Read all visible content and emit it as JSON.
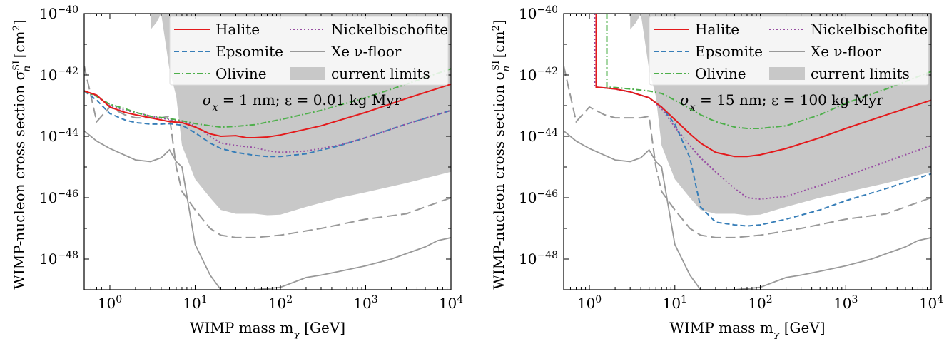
{
  "figure": {
    "ylabel_main": "WIMP-nucleon cross section σ",
    "ylabel_sup": "SI",
    "ylabel_sub": "n",
    "ylabel_unit": " [cm",
    "ylabel_unit_sup": "2",
    "ylabel_close": "]",
    "xlabel_main": "WIMP mass m",
    "xlabel_sub": "χ",
    "xlabel_unit": " [GeV]"
  },
  "chart_data": [
    {
      "type": "line",
      "x_scale": "log",
      "y_scale": "log",
      "xlim": [
        0.5,
        10000
      ],
      "ylim": [
        1e-49,
        1e-40
      ],
      "x_ticks": [
        {
          "label": "10",
          "exp": "0",
          "v": 1
        },
        {
          "label": "10",
          "exp": "1",
          "v": 10
        },
        {
          "label": "10",
          "exp": "2",
          "v": 100
        },
        {
          "label": "10",
          "exp": "3",
          "v": 1000
        },
        {
          "label": "10",
          "exp": "4",
          "v": 10000
        }
      ],
      "y_ticks": [
        {
          "label": "10",
          "exp": "−48",
          "v": 1e-48
        },
        {
          "label": "10",
          "exp": "−46",
          "v": 1e-46
        },
        {
          "label": "10",
          "exp": "−44",
          "v": 1e-44
        },
        {
          "label": "10",
          "exp": "−42",
          "v": 1e-42
        },
        {
          "label": "10",
          "exp": "−40",
          "v": 1e-40
        }
      ],
      "annotation": "σx = 1 nm; ε = 0.01 kg Myr",
      "annotation_parts": [
        "σ",
        "x",
        " = 1 nm; ε = 0.01 kg Myr"
      ],
      "legend_position": "top-right",
      "series": [
        {
          "name": "Halite",
          "color": "#e41a1c",
          "dash": "",
          "x": [
            0.5,
            0.7,
            1,
            1.5,
            2,
            3,
            4,
            5,
            7,
            10,
            15,
            20,
            30,
            40,
            50,
            70,
            100,
            300,
            1000,
            3000,
            10000
          ],
          "y": [
            3e-43,
            2.2e-43,
            9e-44,
            6e-44,
            5e-44,
            4e-44,
            3.4e-44,
            3e-44,
            2.8e-44,
            2e-44,
            1.2e-44,
            1e-44,
            1.05e-44,
            9e-45,
            9e-45,
            9.5e-45,
            1.1e-44,
            2.2e-44,
            6e-44,
            1.7e-43,
            5e-43
          ]
        },
        {
          "name": "Epsomite",
          "color": "#377eb8",
          "dash": "7,4",
          "x": [
            0.5,
            0.7,
            1,
            1.5,
            2,
            3,
            4,
            5,
            7,
            10,
            15,
            20,
            30,
            50,
            70,
            100,
            200,
            500,
            1000,
            3000,
            10000
          ],
          "y": [
            3e-43,
            1.5e-43,
            5.5e-44,
            3.4e-44,
            2.8e-44,
            2.5e-44,
            2.5e-44,
            2.6e-44,
            2.3e-44,
            1.3e-44,
            6e-45,
            4e-45,
            3e-45,
            2.4e-45,
            2.2e-45,
            2.2e-45,
            2.7e-45,
            5e-45,
            9e-45,
            2.5e-44,
            7e-44
          ]
        },
        {
          "name": "Olivine",
          "color": "#4daf4a",
          "dash": "8,3,2,3",
          "x": [
            0.5,
            0.7,
            1,
            1.5,
            2,
            3,
            5,
            7,
            10,
            15,
            20,
            30,
            50,
            100,
            300,
            1000,
            3000,
            10000
          ],
          "y": [
            3e-43,
            2e-43,
            1.1e-43,
            8e-44,
            6e-44,
            4.5e-44,
            3.8e-44,
            3.2e-44,
            2.6e-44,
            2.2e-44,
            2e-44,
            2.1e-44,
            2.4e-44,
            3.5e-44,
            7e-44,
            1.8e-43,
            5e-43,
            1.6e-42
          ]
        },
        {
          "name": "Nickelbischofite",
          "color": "#984ea3",
          "dash": "2,3",
          "x": [
            0.5,
            0.7,
            1,
            1.5,
            2,
            3,
            5,
            7,
            10,
            15,
            20,
            30,
            50,
            70,
            100,
            200,
            500,
            1000,
            3000,
            10000
          ],
          "y": [
            3e-43,
            2e-43,
            1e-43,
            7e-44,
            6e-44,
            4.5e-44,
            3.5e-44,
            3.1e-44,
            2.2e-44,
            1e-44,
            6e-45,
            5e-45,
            4.3e-45,
            3.4e-45,
            3e-45,
            3.3e-45,
            5.2e-45,
            9e-45,
            2.5e-44,
            7e-44
          ]
        },
        {
          "name": "Xe ν-floor",
          "color": "#999999",
          "dash": "",
          "x": [
            0.5,
            0.7,
            1,
            2,
            3,
            4,
            5,
            6,
            7,
            10,
            15,
            20,
            30,
            50,
            100,
            200,
            300,
            500,
            1000,
            2000,
            3000,
            5000,
            7000,
            10000
          ],
          "y": [
            1.5e-44,
            7e-45,
            4e-45,
            1.7e-45,
            1.5e-45,
            2e-45,
            3.6e-45,
            1.5e-45,
            1e-45,
            3e-48,
            3e-49,
            1e-49,
            1e-49,
            1e-49,
            1.2e-49,
            2.5e-49,
            3e-49,
            4e-49,
            6e-49,
            1e-48,
            1.5e-48,
            2.5e-48,
            4e-48,
            5e-48
          ]
        }
      ],
      "extra_floor": {
        "color": "#999999",
        "dash": "14,6",
        "x": [
          0.5,
          0.7,
          1,
          1.5,
          2,
          3,
          4,
          5,
          6,
          7,
          10,
          15,
          20,
          30,
          50,
          100,
          300,
          1000,
          3000,
          10000
        ],
        "y": [
          2e-42,
          3e-44,
          9e-44,
          5e-44,
          4e-44,
          4e-44,
          4e-44,
          4.5e-44,
          1e-45,
          1.6e-46,
          4e-47,
          1e-47,
          6e-48,
          5e-48,
          5e-48,
          6e-48,
          1e-47,
          2e-47,
          3e-47,
          1e-46
        ]
      },
      "limits_region": {
        "x": [
          3,
          3.5,
          4,
          5,
          6,
          7,
          10,
          15,
          20,
          30,
          50,
          70,
          100,
          200,
          500,
          1000,
          3000,
          10000
        ],
        "upper": [
          1e-40,
          1e-40,
          1e-40,
          1e-40,
          1e-40,
          1e-40,
          1e-40,
          1e-40,
          1e-40,
          1e-40,
          1e-40,
          1e-40,
          1e-40,
          1e-40,
          1e-40,
          1e-40,
          1e-40,
          1e-40
        ],
        "lower": [
          3e-41,
          5e-41,
          1e-40,
          1.5e-42,
          2e-43,
          5e-45,
          4e-46,
          1e-46,
          4e-47,
          3e-47,
          3e-47,
          2.7e-47,
          2.8e-47,
          5e-47,
          1e-46,
          1.5e-46,
          3e-46,
          7e-46
        ]
      }
    },
    {
      "type": "line",
      "x_scale": "log",
      "y_scale": "log",
      "xlim": [
        0.5,
        10000
      ],
      "ylim": [
        1e-49,
        1e-40
      ],
      "x_ticks": [
        {
          "label": "10",
          "exp": "0",
          "v": 1
        },
        {
          "label": "10",
          "exp": "1",
          "v": 10
        },
        {
          "label": "10",
          "exp": "2",
          "v": 100
        },
        {
          "label": "10",
          "exp": "3",
          "v": 1000
        },
        {
          "label": "10",
          "exp": "4",
          "v": 10000
        }
      ],
      "y_ticks": [
        {
          "label": "10",
          "exp": "−48",
          "v": 1e-48
        },
        {
          "label": "10",
          "exp": "−46",
          "v": 1e-46
        },
        {
          "label": "10",
          "exp": "−44",
          "v": 1e-44
        },
        {
          "label": "10",
          "exp": "−42",
          "v": 1e-42
        },
        {
          "label": "10",
          "exp": "−40",
          "v": 1e-40
        }
      ],
      "annotation": "σx = 15 nm; ε = 100 kg Myr",
      "annotation_parts": [
        "σ",
        "x",
        " = 15 nm; ε = 100 kg Myr"
      ],
      "legend_position": "top-right",
      "series": [
        {
          "name": "Halite",
          "color": "#e41a1c",
          "dash": "",
          "x": [
            1.2,
            1.2,
            1.5,
            2,
            3,
            5,
            7,
            10,
            15,
            20,
            30,
            50,
            70,
            100,
            200,
            500,
            1000,
            3000,
            10000
          ],
          "y": [
            1e-40,
            4e-43,
            3.8e-43,
            3.5e-43,
            2.8e-43,
            1.8e-43,
            9e-44,
            3.5e-44,
            1.2e-44,
            6e-45,
            3e-45,
            2.2e-45,
            2.2e-45,
            2.5e-45,
            4e-45,
            9e-45,
            1.8e-44,
            5e-44,
            1.5e-43
          ]
        },
        {
          "name": "Epsomite",
          "color": "#377eb8",
          "dash": "7,4",
          "x": [
            1.2,
            1.2,
            1.5,
            2,
            3,
            5,
            7,
            10,
            15,
            20,
            30,
            50,
            70,
            100,
            200,
            500,
            1000,
            3000,
            10000
          ],
          "y": [
            1e-40,
            4e-43,
            3.8e-43,
            3.5e-43,
            2.8e-43,
            1.8e-43,
            9e-44,
            2.5e-44,
            2e-45,
            5e-47,
            1.6e-47,
            1.3e-47,
            1.2e-47,
            1.3e-47,
            2e-47,
            4e-47,
            8e-47,
            2e-46,
            6e-46
          ]
        },
        {
          "name": "Olivine",
          "color": "#4daf4a",
          "dash": "8,3,2,3",
          "x": [
            1.6,
            1.6,
            2,
            3,
            5,
            7,
            10,
            15,
            20,
            30,
            50,
            70,
            100,
            200,
            500,
            1000,
            3000,
            10000
          ],
          "y": [
            1e-40,
            4e-43,
            3.9e-43,
            3.5e-43,
            3e-43,
            2.5e-43,
            1.5e-43,
            8e-44,
            5e-44,
            3e-44,
            2e-44,
            1.8e-44,
            1.8e-44,
            2.2e-44,
            5e-44,
            1.2e-43,
            3.5e-43,
            1.3e-42
          ]
        },
        {
          "name": "Nickelbischofite",
          "color": "#984ea3",
          "dash": "2,3",
          "x": [
            1.15,
            1.15,
            1.5,
            2,
            3,
            5,
            7,
            10,
            15,
            20,
            30,
            50,
            70,
            100,
            200,
            500,
            1000,
            3000,
            10000
          ],
          "y": [
            1e-40,
            4e-43,
            3.8e-43,
            3.5e-43,
            2.8e-43,
            1.8e-43,
            8e-44,
            2e-44,
            5e-45,
            2e-45,
            7e-46,
            2e-46,
            1e-46,
            9e-47,
            1.1e-46,
            2.5e-46,
            5e-46,
            1.5e-45,
            5e-45
          ]
        },
        {
          "name": "Xe ν-floor",
          "color": "#999999",
          "dash": "",
          "x": [
            0.5,
            0.7,
            1,
            2,
            3,
            4,
            5,
            6,
            7,
            10,
            15,
            20,
            30,
            50,
            100,
            200,
            300,
            500,
            1000,
            2000,
            3000,
            5000,
            7000,
            10000
          ],
          "y": [
            1.5e-44,
            7e-45,
            4e-45,
            1.7e-45,
            1.5e-45,
            2e-45,
            3.6e-45,
            1.5e-45,
            1e-45,
            3e-48,
            3e-49,
            1e-49,
            1e-49,
            1e-49,
            1.2e-49,
            2.5e-49,
            3e-49,
            4e-49,
            6e-49,
            1e-48,
            1.5e-48,
            2.5e-48,
            4e-48,
            5e-48
          ]
        }
      ],
      "extra_floor": {
        "color": "#999999",
        "dash": "14,6",
        "x": [
          0.5,
          0.7,
          1,
          1.5,
          2,
          3,
          4,
          5,
          6,
          7,
          10,
          15,
          20,
          30,
          50,
          100,
          300,
          1000,
          3000,
          10000
        ],
        "y": [
          2e-42,
          3e-44,
          9e-44,
          5e-44,
          4e-44,
          4e-44,
          4e-44,
          4.5e-44,
          1e-45,
          1.6e-46,
          4e-47,
          1e-47,
          6e-48,
          5e-48,
          5e-48,
          6e-48,
          1e-47,
          2e-47,
          3e-47,
          1e-46
        ]
      },
      "limits_region": {
        "x": [
          3,
          3.5,
          4,
          5,
          6,
          7,
          10,
          15,
          20,
          30,
          50,
          70,
          100,
          200,
          500,
          1000,
          3000,
          10000
        ],
        "upper": [
          1e-40,
          1e-40,
          1e-40,
          1e-40,
          1e-40,
          1e-40,
          1e-40,
          1e-40,
          1e-40,
          1e-40,
          1e-40,
          1e-40,
          1e-40,
          1e-40,
          1e-40,
          1e-40,
          1e-40,
          1e-40
        ],
        "lower": [
          3e-41,
          5e-41,
          1e-40,
          1.5e-42,
          2e-43,
          5e-45,
          4e-46,
          1e-46,
          4e-47,
          3e-47,
          3e-47,
          2.7e-47,
          2.8e-47,
          5e-47,
          1e-46,
          1.5e-46,
          3e-46,
          7e-46
        ]
      }
    }
  ],
  "legend": {
    "col1": [
      {
        "name": "Halite",
        "color": "#e41a1c",
        "dash": ""
      },
      {
        "name": "Epsomite",
        "color": "#377eb8",
        "dash": "7,4"
      },
      {
        "name": "Olivine",
        "color": "#4daf4a",
        "dash": "8,3,2,3"
      }
    ],
    "col2": [
      {
        "name": "Nickelbischofite",
        "color": "#984ea3",
        "dash": "2,3"
      },
      {
        "name": "Xe ν-floor",
        "color": "#999999",
        "dash": ""
      },
      {
        "name": "current limits",
        "color": "#c8c8c8",
        "dash": "fill"
      }
    ]
  },
  "colors": {
    "limits_fill": "#c8c8c8",
    "floor": "#999999"
  }
}
